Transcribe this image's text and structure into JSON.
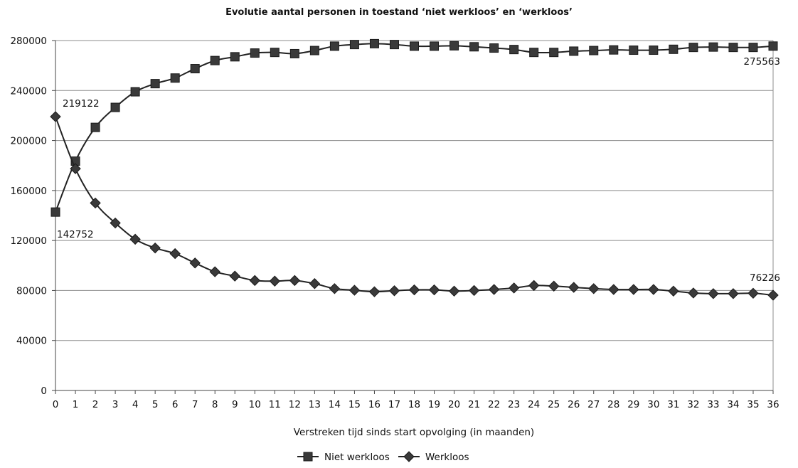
{
  "chart_data": {
    "type": "line",
    "title": "Evolutie aantal personen in toestand ‘niet werkloos’ en ‘werkloos’",
    "xlabel": "Verstreken tijd sinds start opvolging (in maanden)",
    "ylabel": "",
    "ylim": [
      0,
      280000
    ],
    "yticks": [
      "0",
      "40000",
      "80000",
      "120000",
      "160000",
      "200000",
      "240000",
      "280000"
    ],
    "x": [
      0,
      1,
      2,
      3,
      4,
      5,
      6,
      7,
      8,
      9,
      10,
      11,
      12,
      13,
      14,
      15,
      16,
      17,
      18,
      19,
      20,
      21,
      22,
      23,
      24,
      25,
      26,
      27,
      28,
      29,
      30,
      31,
      32,
      33,
      34,
      35,
      36
    ],
    "grid": "horizontal",
    "legend_position": "bottom",
    "series": [
      {
        "name": "Niet werkloos",
        "marker": "square",
        "color": "#333333",
        "values": [
          142752,
          183500,
          210500,
          226500,
          239000,
          245500,
          250000,
          257500,
          264000,
          267000,
          270000,
          270500,
          269500,
          272000,
          275500,
          276800,
          277500,
          276800,
          275500,
          275500,
          275800,
          275000,
          274000,
          272800,
          270500,
          270500,
          271500,
          272000,
          272500,
          272300,
          272300,
          273000,
          274500,
          274800,
          274500,
          274500,
          275563
        ]
      },
      {
        "name": "Werkloos",
        "marker": "diamond",
        "color": "#333333",
        "values": [
          219122,
          177500,
          150000,
          134000,
          121000,
          114000,
          109500,
          102000,
          95000,
          91500,
          88000,
          87500,
          88000,
          85500,
          81500,
          80200,
          79000,
          79800,
          80500,
          80500,
          79500,
          80000,
          80800,
          82000,
          84000,
          83500,
          82500,
          81500,
          80800,
          80800,
          80800,
          79500,
          78000,
          77500,
          77500,
          77800,
          76226
        ]
      }
    ],
    "annotations": [
      {
        "series": 1,
        "index": 0,
        "text": "219122"
      },
      {
        "series": 0,
        "index": 0,
        "text": "142752"
      },
      {
        "series": 0,
        "index": 36,
        "text": "275563"
      },
      {
        "series": 1,
        "index": 36,
        "text": "76226"
      }
    ]
  }
}
